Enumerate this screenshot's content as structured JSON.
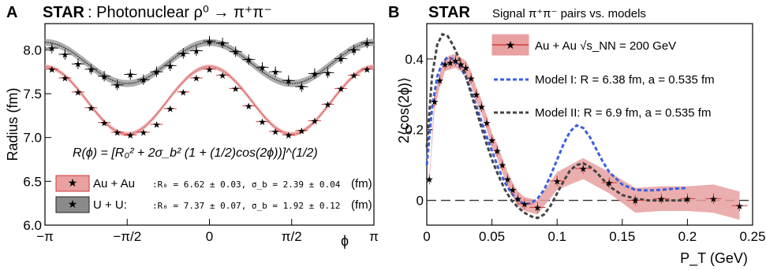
{
  "chart_data": [
    {
      "type": "scatter",
      "panel": "A",
      "experiment": "STAR",
      "title": ": Photonuclear ρ⁰ → π⁺π⁻",
      "xlabel": "ϕ",
      "ylabel": "Radius (fm)",
      "xlim": [
        -3.14159,
        3.14159
      ],
      "ylim": [
        6.0,
        8.3
      ],
      "xticks": [
        {
          "value": -3.14159,
          "label": "−π"
        },
        {
          "value": -1.5708,
          "label": "−π/2"
        },
        {
          "value": 0,
          "label": "0"
        },
        {
          "value": 1.5708,
          "label": "π/2"
        },
        {
          "value": 3.14159,
          "label": "π"
        }
      ],
      "yticks": [
        6.0,
        6.5,
        7.0,
        7.5,
        8.0
      ],
      "formula": "R(ϕ) = [R₀² + 2σ_b² (1 + (1/2)cos(2ϕ))]^(1/2)",
      "series": [
        {
          "name": "Au + Au",
          "fit_label": ":R₀ = 6.62 ± 0.03, σ_b = 2.39 ± 0.04",
          "fit_unit": "(fm)",
          "color": "#d33a3a",
          "fit": {
            "R0": 6.62,
            "sigma_b": 2.39
          },
          "x": [
            -3.01,
            -2.76,
            -2.51,
            -2.26,
            -2.01,
            -1.76,
            -1.51,
            -1.26,
            -1.01,
            -0.75,
            -0.5,
            -0.25,
            0,
            0.25,
            0.5,
            0.75,
            1.01,
            1.26,
            1.51,
            1.76,
            2.01,
            2.26,
            2.51,
            2.76,
            3.01
          ],
          "y": [
            7.78,
            7.68,
            7.52,
            7.34,
            7.17,
            7.06,
            7.03,
            7.06,
            7.15,
            7.33,
            7.52,
            7.68,
            7.78,
            7.71,
            7.56,
            7.36,
            7.18,
            7.07,
            7.03,
            7.08,
            7.19,
            7.38,
            7.56,
            7.71,
            7.78
          ]
        },
        {
          "name": "U + U:",
          "fit_label": ":R₀ = 7.37 ± 0.07, σ_b = 1.92 ± 0.12",
          "fit_unit": "(fm)",
          "color": "#1a1a1a",
          "fit": {
            "R0": 7.37,
            "sigma_b": 1.92
          },
          "x": [
            -3.01,
            -2.76,
            -2.51,
            -2.26,
            -2.01,
            -1.76,
            -1.51,
            -1.26,
            -1.01,
            -0.75,
            -0.5,
            -0.25,
            0,
            0.25,
            0.5,
            0.75,
            1.01,
            1.26,
            1.51,
            1.76,
            2.01,
            2.26,
            2.51,
            2.76,
            3.01
          ],
          "y": [
            8.02,
            7.95,
            7.84,
            7.78,
            7.7,
            7.6,
            7.72,
            7.66,
            7.75,
            7.82,
            7.96,
            7.99,
            8.1,
            8.08,
            7.98,
            7.89,
            7.8,
            7.75,
            7.65,
            7.58,
            7.73,
            7.74,
            7.9,
            8.0,
            8.08
          ]
        }
      ]
    },
    {
      "type": "line",
      "panel": "B",
      "experiment": "STAR",
      "title": "Signal π⁺π⁻ pairs vs. models",
      "xlabel": "P_T (GeV)",
      "ylabel": "2⟨cos(2ϕ)⟩",
      "xlim": [
        0,
        0.25
      ],
      "ylim": [
        -0.07,
        0.5
      ],
      "xticks": [
        0,
        0.05,
        0.1,
        0.15,
        0.2,
        0.25
      ],
      "yticks": [
        0,
        0.2,
        0.4
      ],
      "series": [
        {
          "name": "Au + Au √s_NN = 200 GeV",
          "color": "#d33a3a",
          "x": [
            0.002,
            0.006,
            0.01,
            0.014,
            0.018,
            0.022,
            0.026,
            0.03,
            0.034,
            0.038,
            0.042,
            0.046,
            0.05,
            0.054,
            0.058,
            0.062,
            0.066,
            0.07,
            0.075,
            0.085,
            0.1,
            0.12,
            0.14,
            0.16,
            0.18,
            0.2,
            0.22,
            0.24
          ],
          "y": [
            0.06,
            0.28,
            0.34,
            0.385,
            0.39,
            0.395,
            0.385,
            0.375,
            0.345,
            0.3,
            0.265,
            0.22,
            0.17,
            0.14,
            0.1,
            0.06,
            0.03,
            0.005,
            -0.01,
            -0.02,
            0.055,
            0.09,
            0.05,
            0.0,
            0.005,
            0.005,
            0.005,
            -0.015
          ]
        },
        {
          "name": "Model I: R = 6.38 fm, a = 0.535 fm",
          "color": "#3a5fe0",
          "x": [
            0,
            0.004,
            0.008,
            0.012,
            0.016,
            0.02,
            0.025,
            0.03,
            0.035,
            0.04,
            0.045,
            0.05,
            0.055,
            0.06,
            0.065,
            0.07,
            0.075,
            0.08,
            0.085,
            0.09,
            0.095,
            0.1,
            0.105,
            0.11,
            0.115,
            0.12,
            0.125,
            0.13,
            0.135,
            0.14,
            0.15,
            0.16,
            0.17,
            0.18,
            0.19,
            0.2
          ],
          "y": [
            0.1,
            0.26,
            0.35,
            0.39,
            0.405,
            0.4,
            0.38,
            0.35,
            0.3,
            0.245,
            0.19,
            0.14,
            0.09,
            0.05,
            0.02,
            0.0,
            -0.01,
            -0.008,
            0.005,
            0.03,
            0.07,
            0.115,
            0.16,
            0.195,
            0.212,
            0.205,
            0.18,
            0.145,
            0.11,
            0.08,
            0.045,
            0.03,
            0.028,
            0.03,
            0.033,
            0.035
          ]
        },
        {
          "name": "Model II: R = 6.9 fm, a = 0.535 fm",
          "color": "#444444",
          "x": [
            0,
            0.004,
            0.008,
            0.012,
            0.016,
            0.02,
            0.025,
            0.03,
            0.035,
            0.04,
            0.045,
            0.05,
            0.055,
            0.06,
            0.065,
            0.07,
            0.075,
            0.08,
            0.085,
            0.09,
            0.095,
            0.1,
            0.105,
            0.11,
            0.115,
            0.12,
            0.125,
            0.13,
            0.135,
            0.14,
            0.15,
            0.16,
            0.17,
            0.18,
            0.19,
            0.2
          ],
          "y": [
            0.15,
            0.35,
            0.44,
            0.47,
            0.465,
            0.44,
            0.4,
            0.35,
            0.29,
            0.23,
            0.17,
            0.115,
            0.07,
            0.03,
            0.0,
            -0.02,
            -0.035,
            -0.045,
            -0.05,
            -0.04,
            -0.015,
            0.02,
            0.055,
            0.085,
            0.1,
            0.105,
            0.095,
            0.08,
            0.06,
            0.04,
            0.015,
            0.005,
            0.0,
            0.0,
            0.0,
            0.0
          ]
        }
      ],
      "band_halfwidth": [
        0.01,
        0.02,
        0.02,
        0.02,
        0.02,
        0.02,
        0.02,
        0.02,
        0.02,
        0.02,
        0.02,
        0.02,
        0.02,
        0.02,
        0.02,
        0.02,
        0.02,
        0.02,
        0.02,
        0.02,
        0.025,
        0.03,
        0.03,
        0.035,
        0.035,
        0.035,
        0.04,
        0.04
      ]
    }
  ],
  "legend_energy": "Au + Au √s_NN = 200 GeV"
}
